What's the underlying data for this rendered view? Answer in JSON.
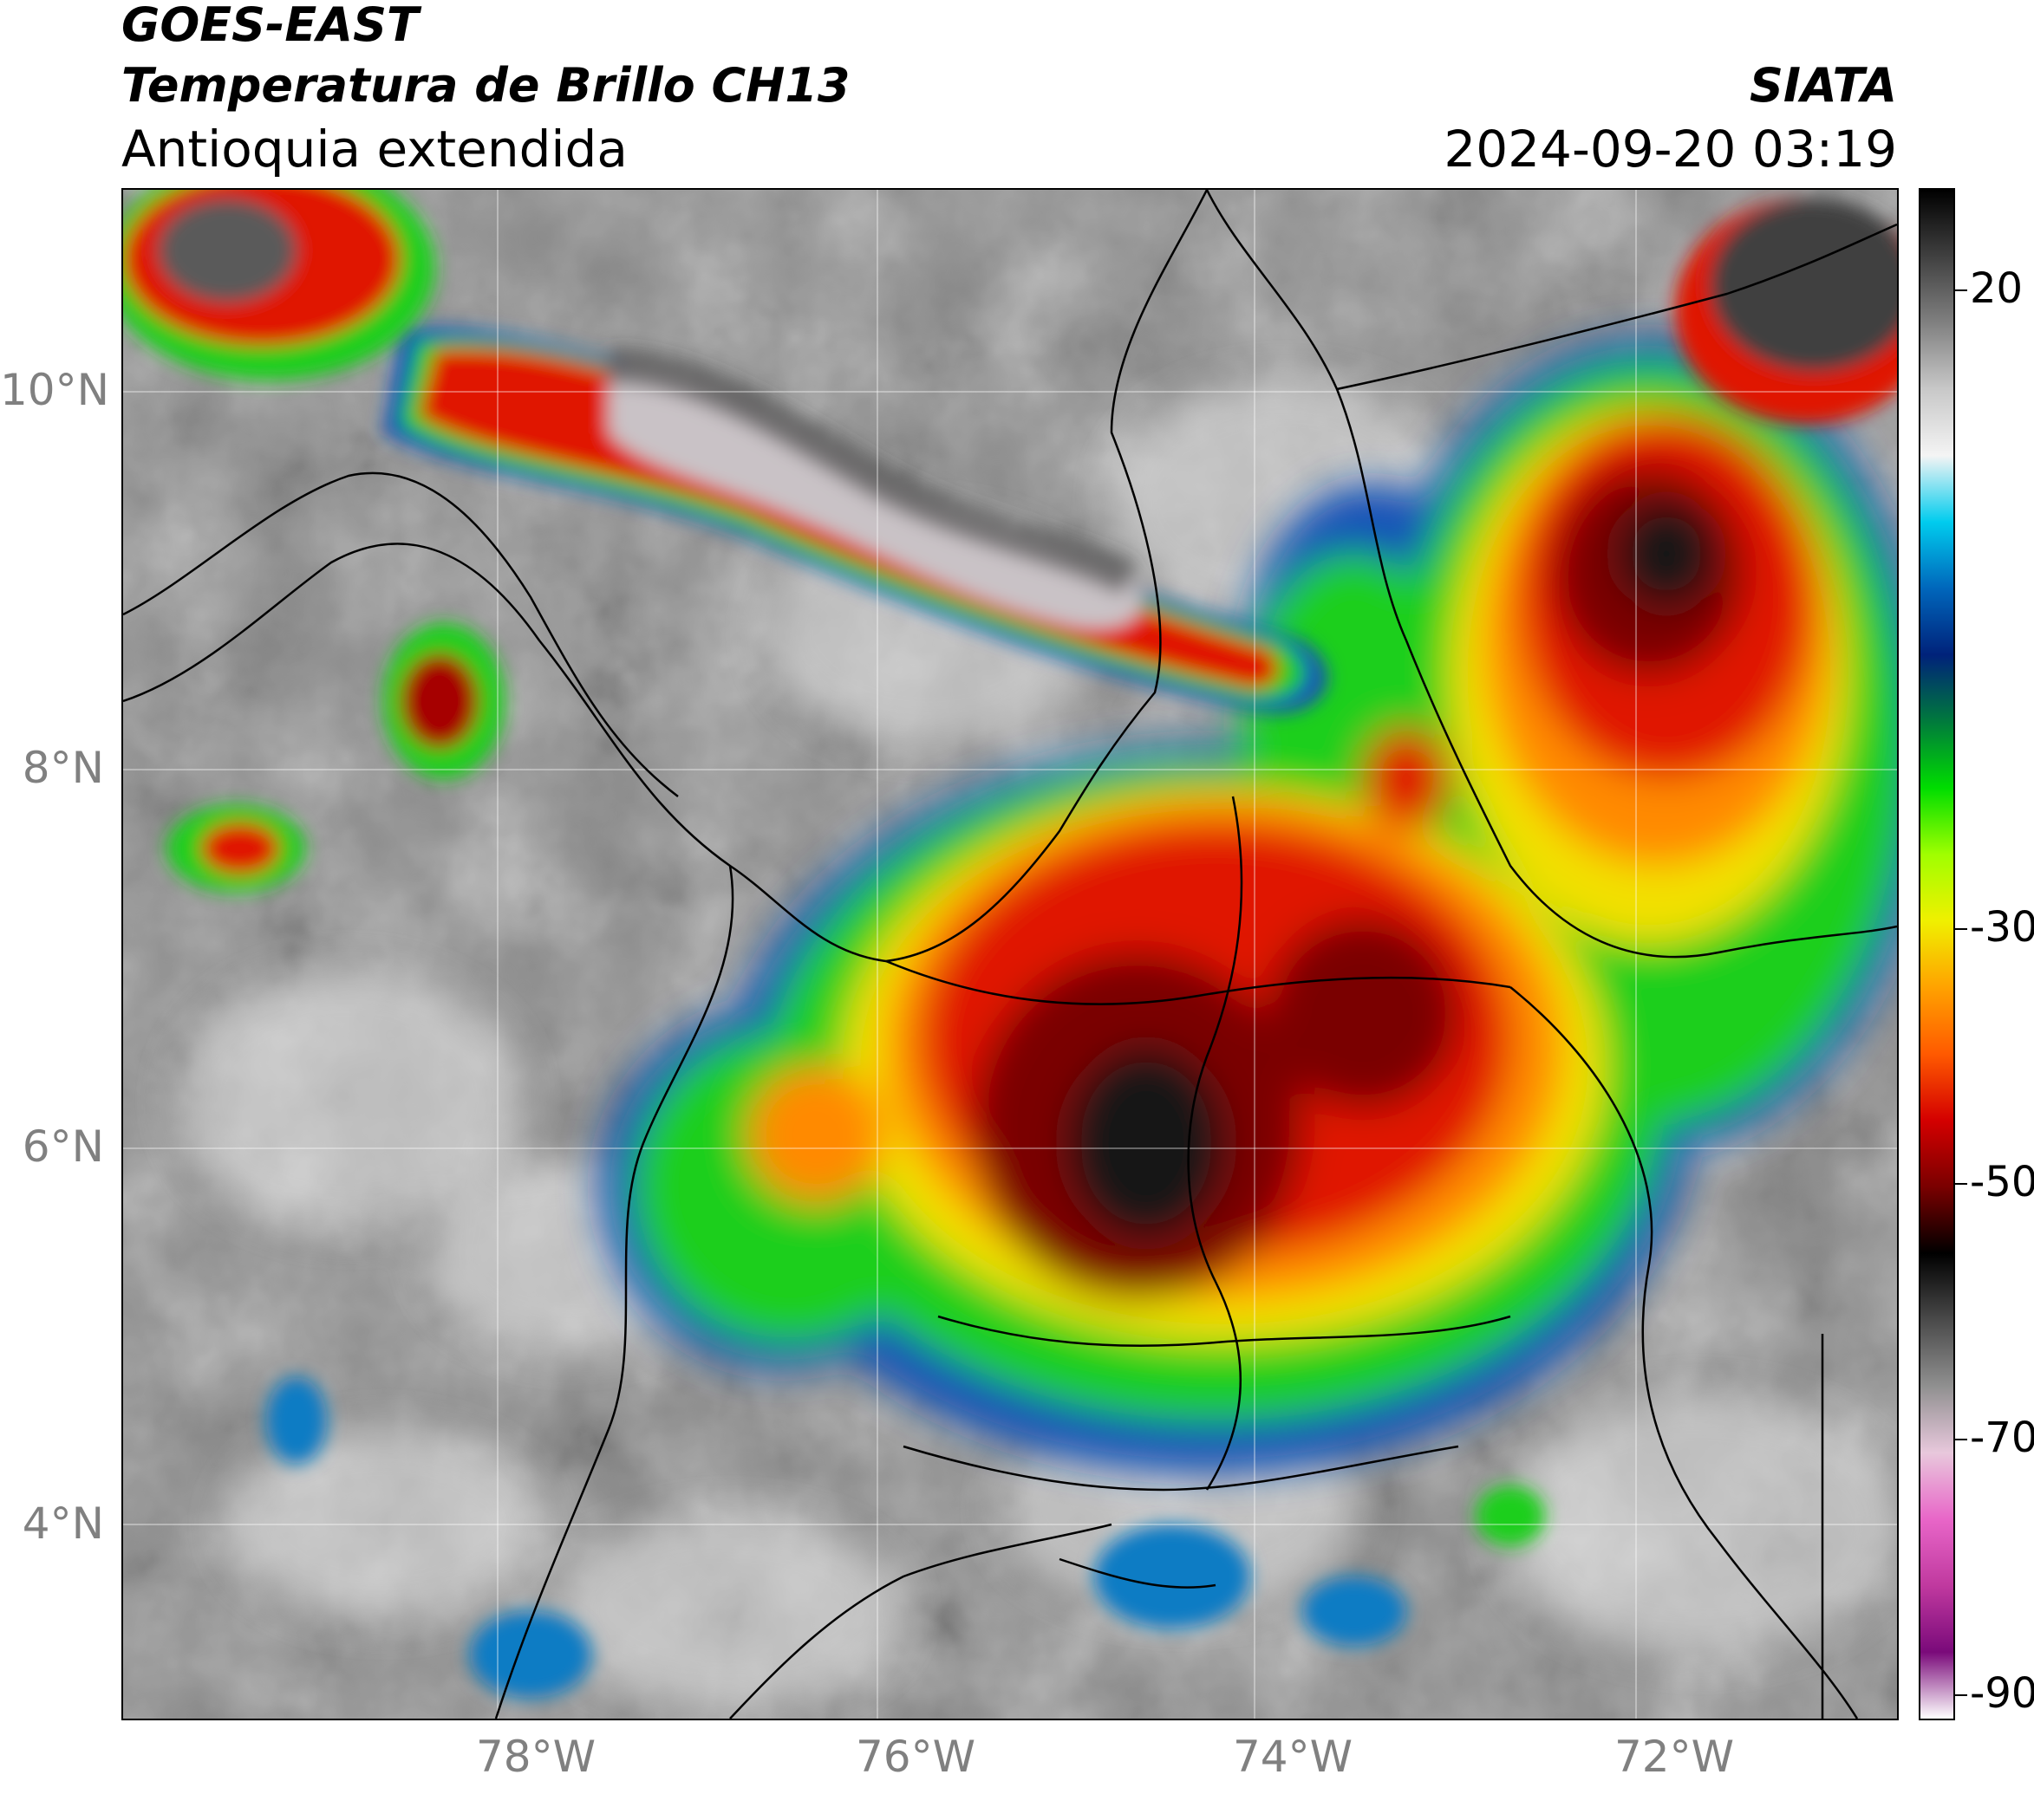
{
  "header": {
    "satellite": "GOES-EAST",
    "product": "Temperatura de Brillo CH13",
    "region": "Antioquia extendida",
    "organization": "SIATA",
    "timestamp": "2024-09-20 03:19"
  },
  "map": {
    "lat_ticks": [
      {
        "value": 10,
        "label": "10°N"
      },
      {
        "value": 8,
        "label": "8°N"
      },
      {
        "value": 6,
        "label": "6°N"
      },
      {
        "value": 4,
        "label": "4°N"
      }
    ],
    "lon_ticks": [
      {
        "value": -78,
        "label": "78°W"
      },
      {
        "value": -76,
        "label": "76°W"
      },
      {
        "value": -74,
        "label": "74°W"
      },
      {
        "value": -72,
        "label": "72°W"
      }
    ],
    "lat_range": [
      2.9,
      11.06
    ],
    "lon_range": [
      -80.0,
      -70.65
    ]
  },
  "colorbar": {
    "units_range": [
      -92,
      28
    ],
    "ticks": [
      {
        "value": 20,
        "label": "20"
      },
      {
        "value": -30,
        "label": "-30"
      },
      {
        "value": -50,
        "label": "-50"
      },
      {
        "value": -70,
        "label": "-70"
      },
      {
        "value": -90,
        "label": "-90"
      }
    ],
    "colors": [
      "#ffffff",
      "#7a0a7a",
      "#c0399f",
      "#e866c8",
      "#e8c8dc",
      "#909090",
      "#4a4a4a",
      "#000000",
      "#7a0000",
      "#d40000",
      "#ff5a00",
      "#ffa200",
      "#f0f000",
      "#a0ff00",
      "#00dd00",
      "#007a3c",
      "#00227a",
      "#0066bb",
      "#00ccee",
      "#f4f4f4",
      "#c8c8c8",
      "#808080",
      "#404040",
      "#000000"
    ]
  }
}
